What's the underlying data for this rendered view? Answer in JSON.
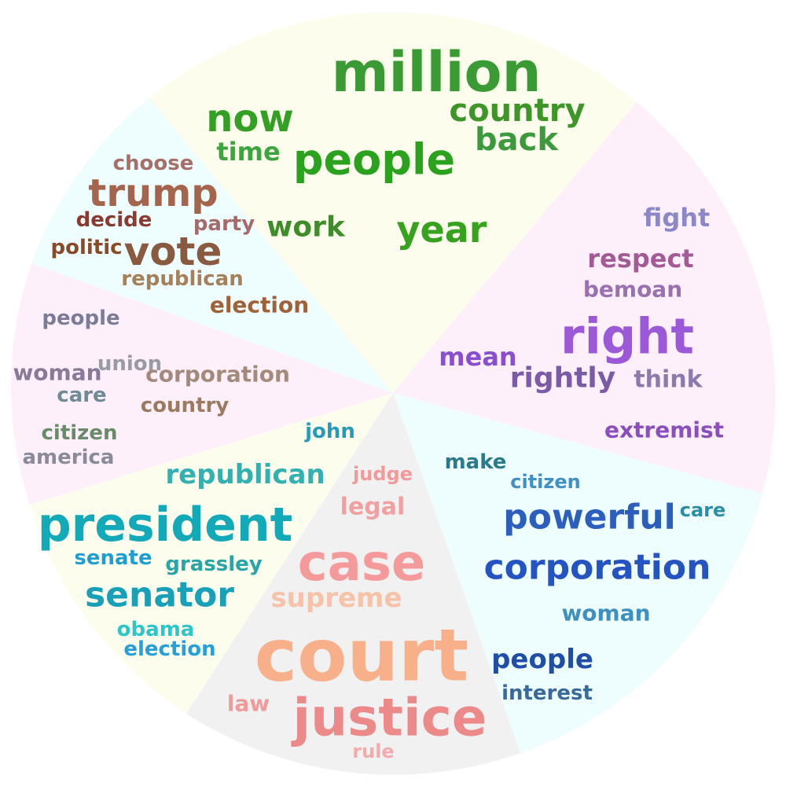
{
  "topics": [
    {
      "id": "economy",
      "color": "#fdfdee",
      "words": [
        {
          "text": "million",
          "color": "#3a9a33"
        },
        {
          "text": "country",
          "color": "#3e9528"
        },
        {
          "text": "back",
          "color": "#3c9a3c"
        },
        {
          "text": "now",
          "color": "#33a025"
        },
        {
          "text": "time",
          "color": "#3da53d"
        },
        {
          "text": "people",
          "color": "#2aa21e"
        },
        {
          "text": "work",
          "color": "#3f8c2b"
        },
        {
          "text": "year",
          "color": "#36a21e"
        }
      ]
    },
    {
      "id": "rights",
      "color": "#fdf0fb",
      "words": [
        {
          "text": "fight",
          "color": "#8c87c8"
        },
        {
          "text": "respect",
          "color": "#a45a94"
        },
        {
          "text": "bemoan",
          "color": "#9b70b0"
        },
        {
          "text": "right",
          "color": "#9b59d8"
        },
        {
          "text": "mean",
          "color": "#8a4fd1"
        },
        {
          "text": "rightly",
          "color": "#7b5aa8"
        },
        {
          "text": "think",
          "color": "#8c7aac"
        },
        {
          "text": "extremist",
          "color": "#8a4fbd"
        }
      ]
    },
    {
      "id": "corporations",
      "color": "#eefdfd",
      "words": [
        {
          "text": "make",
          "color": "#2b7a8c"
        },
        {
          "text": "citizen",
          "color": "#3f8fc9"
        },
        {
          "text": "care",
          "color": "#2a8fa4"
        },
        {
          "text": "powerful",
          "color": "#2c5fbd"
        },
        {
          "text": "corporation",
          "color": "#2453c2"
        },
        {
          "text": "woman",
          "color": "#3f8fc0"
        },
        {
          "text": "people",
          "color": "#1f4ea8"
        },
        {
          "text": "interest",
          "color": "#3a6a9a"
        }
      ]
    },
    {
      "id": "court",
      "color": "#f1f1f1",
      "words": [
        {
          "text": "judge",
          "color": "#f09a9a"
        },
        {
          "text": "legal",
          "color": "#f0a0a0"
        },
        {
          "text": "case",
          "color": "#f59a9a"
        },
        {
          "text": "supreme",
          "color": "#f6c2a8"
        },
        {
          "text": "court",
          "color": "#f8b08a"
        },
        {
          "text": "justice",
          "color": "#ec8a8a"
        },
        {
          "text": "law",
          "color": "#f09a9a"
        },
        {
          "text": "rule",
          "color": "#f4aaaa"
        }
      ]
    },
    {
      "id": "senate",
      "color": "#fdfdee",
      "words": [
        {
          "text": "john",
          "color": "#279ab8"
        },
        {
          "text": "republican",
          "color": "#33b0b0"
        },
        {
          "text": "president",
          "color": "#12aab8"
        },
        {
          "text": "senate",
          "color": "#1f9fd0"
        },
        {
          "text": "grassley",
          "color": "#2aa5a5"
        },
        {
          "text": "senator",
          "color": "#18a0b8"
        },
        {
          "text": "obama",
          "color": "#2dc6c6"
        },
        {
          "text": "election",
          "color": "#25a0d8"
        }
      ]
    },
    {
      "id": "citizens",
      "color": "#fdf0fb",
      "words": [
        {
          "text": "people",
          "color": "#7c7c98"
        },
        {
          "text": "woman",
          "color": "#8a7a98"
        },
        {
          "text": "union",
          "color": "#9a9aa5"
        },
        {
          "text": "corporation",
          "color": "#a58a7c"
        },
        {
          "text": "care",
          "color": "#708a96"
        },
        {
          "text": "country",
          "color": "#9c7a60"
        },
        {
          "text": "citizen",
          "color": "#6a8a6a"
        },
        {
          "text": "america",
          "color": "#8a8a98"
        }
      ]
    },
    {
      "id": "politics",
      "color": "#eefdfd",
      "words": [
        {
          "text": "choose",
          "color": "#a5706a"
        },
        {
          "text": "trump",
          "color": "#a5644c"
        },
        {
          "text": "decide",
          "color": "#8a3a30"
        },
        {
          "text": "party",
          "color": "#a56a6a"
        },
        {
          "text": "politic",
          "color": "#8a4a28"
        },
        {
          "text": "vote",
          "color": "#8a5a40"
        },
        {
          "text": "republican",
          "color": "#a5805a"
        },
        {
          "text": "election",
          "color": "#a0603a"
        }
      ]
    }
  ]
}
